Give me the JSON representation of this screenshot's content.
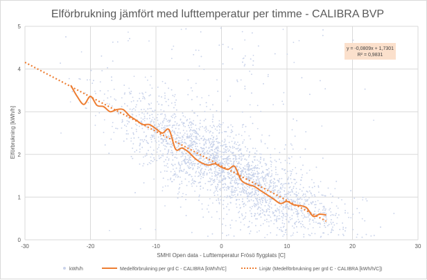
{
  "chart_data": {
    "type": "scatter",
    "title": "Elförbrukning jämfört med lufttemperatur per timme - CALIBRA BVP",
    "xlabel": "SMHI Open data - Lufttemperatur Frösö flygplats [C]",
    "ylabel": "Elförbrukning [kWh/h]",
    "xlim": [
      -30,
      30
    ],
    "ylim": [
      0,
      5
    ],
    "x_ticks": [
      "-30",
      "-20",
      "-10",
      "0",
      "10",
      "20",
      "30"
    ],
    "y_ticks": [
      "0",
      "1",
      "2",
      "3",
      "4",
      "5"
    ],
    "grid": true,
    "series": [
      {
        "name": "kWh/h",
        "kind": "scatter",
        "color": "#c9d3ea",
        "marker": "dot"
      },
      {
        "name": "Medelförbrukning per grd C - CALIBRA [kWh/h/C]",
        "kind": "line",
        "color": "#ed7d31",
        "x": [
          -23,
          -22,
          -21,
          -20,
          -19,
          -18,
          -17,
          -16,
          -15,
          -14,
          -13,
          -12,
          -11,
          -10,
          -9,
          -8,
          -7,
          -6,
          -5,
          -4,
          -3,
          -2,
          -1,
          0,
          1,
          2,
          3,
          4,
          5,
          6,
          7,
          8,
          9,
          10,
          11,
          12,
          13,
          14,
          15,
          16
        ],
        "y": [
          3.62,
          3.35,
          3.17,
          3.36,
          3.15,
          3.12,
          3.0,
          3.05,
          3.05,
          2.9,
          2.8,
          2.7,
          2.7,
          2.6,
          2.5,
          2.58,
          2.12,
          2.15,
          2.05,
          1.9,
          1.8,
          1.75,
          1.78,
          1.7,
          1.65,
          1.72,
          1.4,
          1.3,
          1.25,
          1.15,
          1.05,
          0.95,
          0.85,
          0.9,
          0.82,
          0.8,
          0.75,
          0.55,
          0.6,
          0.58
        ]
      },
      {
        "name": "Linjär (Medelförbrukning per grd C - CALIBRA [kWh/h/C])",
        "kind": "trendline",
        "color": "#ed7d31",
        "dash": "dotted",
        "slope": -0.0809,
        "intercept": 1.7301,
        "x_range": [
          -30,
          16
        ]
      }
    ],
    "annotation": {
      "equation": "y = -0,0809x + 1,7301",
      "r_squared": "R² = 0,9831"
    },
    "legend_position": "bottom"
  }
}
